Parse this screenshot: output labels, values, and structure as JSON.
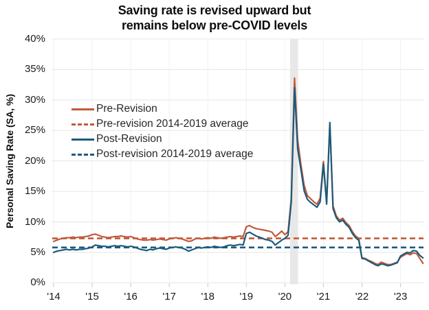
{
  "title": {
    "line1": "Saving rate is revised upward but",
    "line2": "remains below pre-COVID levels"
  },
  "y_axis": {
    "label": "Personal Saving Rate (SA, %)",
    "tick_labels": [
      "0%",
      "5%",
      "10%",
      "15%",
      "20%",
      "25%",
      "30%",
      "35%",
      "40%"
    ],
    "tick_values": [
      0,
      5,
      10,
      15,
      20,
      25,
      30,
      35,
      40
    ]
  },
  "x_axis": {
    "tick_labels": [
      "'14",
      "'15",
      "'16",
      "'17",
      "'18",
      "'19",
      "'20",
      "'21",
      "'22",
      "'23"
    ]
  },
  "legend": [
    {
      "label": "Pre-Revision",
      "color": "#c05a3a",
      "style": "solid"
    },
    {
      "label": "Pre-revision 2014-2019 average",
      "color": "#c05a3a",
      "style": "dashed"
    },
    {
      "label": "Post-Revision",
      "color": "#1b5a7d",
      "style": "solid"
    },
    {
      "label": "Post-revision 2014-2019 average",
      "color": "#1b5a7d",
      "style": "dashed"
    }
  ],
  "colors": {
    "pre_revision": "#c05a3a",
    "post_revision": "#1b5a7d",
    "gridline": "#e6e6e6",
    "vertical_gridline": "#f1f1f1",
    "tick_mark": "#c4c4c4",
    "recession_band": "#e8e8e8",
    "title_text": "#0d0d0d",
    "axis_text": "#1a1a1a"
  },
  "chart_data": {
    "type": "line",
    "title": "Saving rate is revised upward but remains below pre-COVID levels",
    "ylabel": "Personal Saving Rate (SA, %)",
    "ylim": [
      0,
      40
    ],
    "grid": true,
    "legend_position": "upper-left",
    "frequency": "monthly",
    "x_start": "2014-01",
    "x_end": "2023-08",
    "x_tick_labels": [
      "'14",
      "'15",
      "'16",
      "'17",
      "'18",
      "'19",
      "'20",
      "'21",
      "'22",
      "'23"
    ],
    "recession_shading": {
      "from": "2020-02",
      "to": "2020-04"
    },
    "series": [
      {
        "name": "Pre-Revision",
        "style": "solid",
        "color": "#c05a3a",
        "values": [
          6.8,
          7.0,
          7.2,
          7.3,
          7.4,
          7.4,
          7.5,
          7.4,
          7.5,
          7.5,
          7.6,
          7.7,
          7.9,
          8.0,
          7.8,
          7.6,
          7.5,
          7.4,
          7.5,
          7.6,
          7.6,
          7.7,
          7.6,
          7.5,
          7.6,
          7.4,
          7.2,
          7.1,
          7.0,
          7.0,
          7.1,
          7.0,
          7.1,
          7.2,
          7.1,
          7.0,
          7.2,
          7.3,
          7.4,
          7.3,
          7.2,
          7.0,
          6.8,
          6.9,
          7.2,
          7.3,
          7.2,
          7.3,
          7.4,
          7.3,
          7.5,
          7.4,
          7.3,
          7.4,
          7.5,
          7.6,
          7.5,
          7.6,
          7.7,
          7.6,
          9.2,
          9.4,
          9.1,
          8.9,
          8.8,
          8.7,
          8.6,
          8.5,
          8.3,
          7.6,
          8.0,
          8.5,
          7.9,
          8.4,
          13.9,
          33.6,
          23.4,
          19.4,
          16.0,
          14.3,
          13.8,
          13.3,
          12.9,
          13.9,
          19.9,
          13.3,
          26.0,
          12.6,
          11.0,
          10.3,
          10.6,
          9.9,
          9.4,
          8.4,
          7.7,
          7.3,
          4.1,
          4.0,
          3.7,
          3.5,
          3.2,
          3.0,
          3.4,
          3.2,
          3.0,
          3.0,
          3.2,
          3.4,
          4.2,
          4.5,
          4.8,
          4.6,
          4.9,
          4.8,
          4.0,
          3.2
        ]
      },
      {
        "name": "Pre-revision 2014-2019 average",
        "style": "dashed",
        "color": "#c05a3a",
        "value": 7.3
      },
      {
        "name": "Post-Revision",
        "style": "solid",
        "color": "#1b5a7d",
        "values": [
          5.0,
          5.2,
          5.3,
          5.4,
          5.5,
          5.4,
          5.5,
          5.4,
          5.5,
          5.5,
          5.6,
          5.7,
          5.9,
          6.2,
          6.1,
          6.0,
          6.0,
          5.9,
          6.0,
          6.1,
          6.0,
          6.1,
          6.0,
          5.9,
          6.0,
          5.9,
          5.7,
          5.5,
          5.4,
          5.3,
          5.5,
          5.4,
          5.6,
          5.7,
          5.6,
          5.5,
          5.7,
          5.8,
          5.9,
          5.8,
          5.7,
          5.5,
          5.2,
          5.4,
          5.6,
          5.8,
          5.7,
          5.8,
          5.9,
          5.8,
          6.0,
          5.9,
          5.8,
          5.9,
          6.1,
          6.2,
          6.1,
          6.2,
          6.3,
          6.2,
          8.1,
          8.3,
          8.0,
          7.7,
          7.5,
          7.3,
          7.1,
          7.0,
          6.8,
          6.2,
          6.6,
          7.0,
          7.3,
          7.8,
          13.3,
          32.0,
          22.0,
          18.6,
          15.1,
          13.7,
          13.2,
          12.8,
          12.4,
          13.3,
          19.5,
          12.9,
          26.3,
          12.2,
          10.7,
          10.0,
          10.3,
          9.6,
          9.1,
          8.1,
          7.4,
          7.0,
          4.0,
          3.9,
          3.6,
          3.3,
          3.0,
          2.8,
          3.1,
          3.0,
          2.8,
          2.9,
          3.1,
          3.3,
          4.4,
          4.7,
          5.0,
          4.9,
          5.3,
          5.2,
          4.5,
          4.1
        ]
      },
      {
        "name": "Post-revision 2014-2019 average",
        "style": "dashed",
        "color": "#1b5a7d",
        "value": 5.8
      }
    ]
  }
}
